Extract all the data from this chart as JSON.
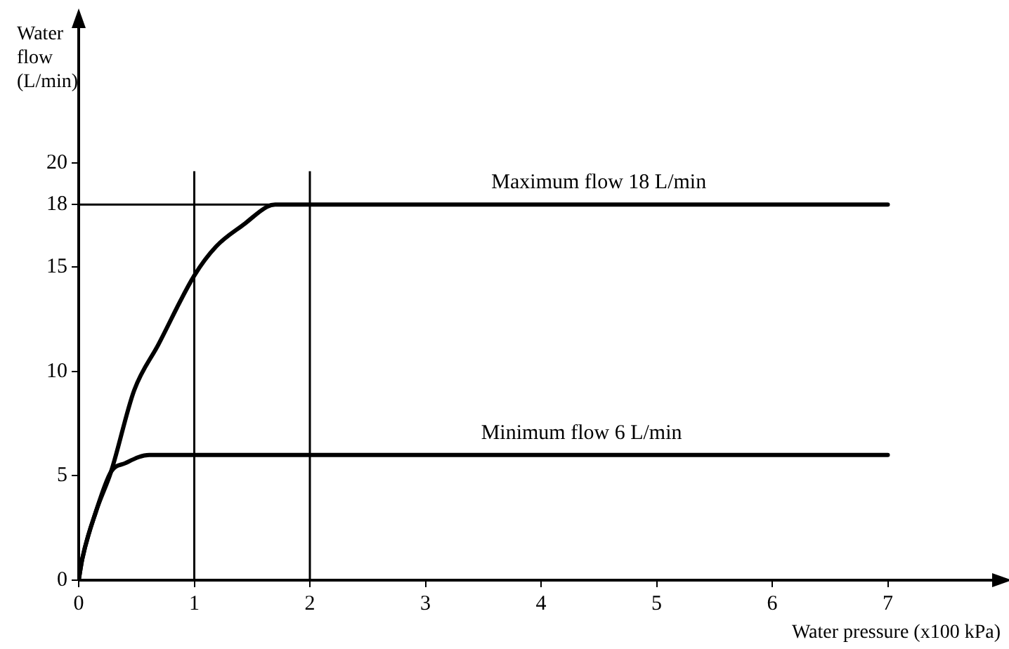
{
  "chart_data": {
    "type": "line",
    "xlabel": "Water pressure (x100 kPa)",
    "ylabel": "Water flow (L/min)",
    "xlim": [
      0,
      8
    ],
    "ylim": [
      0,
      27
    ],
    "xticks": [
      0,
      1,
      2,
      3,
      4,
      5,
      6,
      7
    ],
    "yticks": [
      0,
      5,
      10,
      15,
      18,
      20
    ],
    "marker": "none",
    "line_style": "solid",
    "legend": false,
    "series": [
      {
        "color": "#000000",
        "x": [
          0,
          0.03,
          0.15,
          0.28,
          0.48,
          0.69,
          1,
          1.19,
          1.44,
          1.63,
          1.7,
          7
        ],
        "values": [
          0,
          1,
          3.3,
          5.2,
          9.1,
          11.3,
          14.6,
          16,
          17.1,
          17.9,
          18,
          18
        ]
      },
      {
        "color": "#000000",
        "x": [
          0,
          0.03,
          0.15,
          0.28,
          0.4,
          0.61,
          7
        ],
        "values": [
          0,
          1,
          3.3,
          5.2,
          5.6,
          6,
          6
        ]
      }
    ],
    "ref_lines": [
      {
        "axis": "x",
        "value": 1
      },
      {
        "axis": "x",
        "value": 2
      },
      {
        "axis": "y",
        "value": 18
      }
    ],
    "annotations": [
      {
        "text": "Maximum flow 18 L/min",
        "x": 4.5,
        "y": 18
      },
      {
        "text": "Minimum flow 6 L/min",
        "x": 4.35,
        "y": 6
      }
    ]
  }
}
